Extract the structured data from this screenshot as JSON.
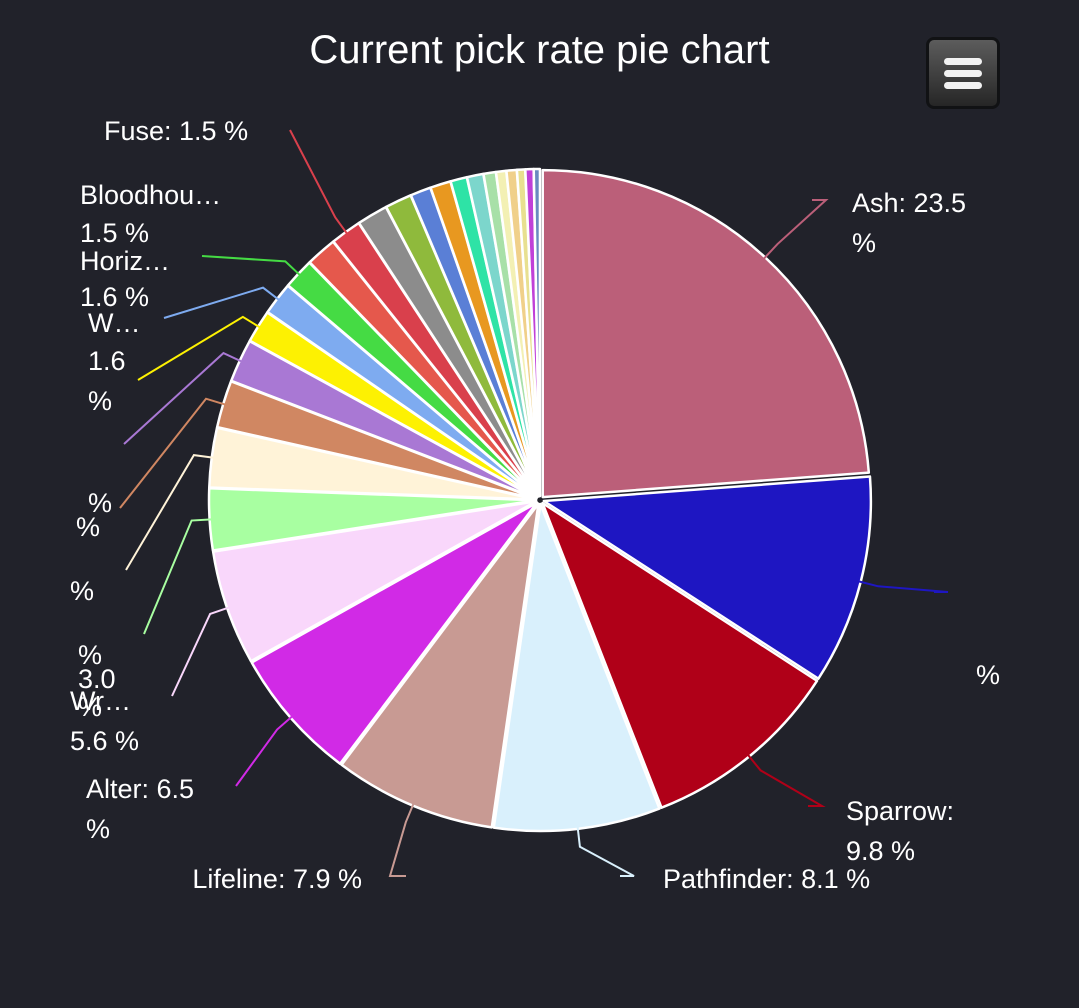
{
  "chart_data": {
    "type": "pie",
    "title": "Current pick rate pie chart",
    "legend": "none",
    "slices": [
      {
        "label": "Ash: 23.5 %",
        "value": 23.5,
        "color": "#bb5f79"
      },
      {
        "label": "",
        "value": 10.2,
        "color": "#1e16c2"
      },
      {
        "label": "Sparrow: 9.8 %",
        "value": 9.8,
        "color": "#b00018"
      },
      {
        "label": "Pathfinder: 8.1 %",
        "value": 8.1,
        "color": "#d9f0fc"
      },
      {
        "label": "Lifeline: 7.9 %",
        "value": 7.9,
        "color": "#c89a93"
      },
      {
        "label": "Alter: 6.5 %",
        "value": 6.5,
        "color": "#d12ae6"
      },
      {
        "label": "Wr… 5.6 %",
        "value": 5.6,
        "color": "#f9d7fb"
      },
      {
        "label": "3.0 %",
        "value": 3.0,
        "color": "#a8ffa1"
      },
      {
        "label": "%",
        "value": 2.9,
        "color": "#fff3d8"
      },
      {
        "label": "%",
        "value": 2.3,
        "color": "#d08762"
      },
      {
        "label": "%",
        "value": 2.1,
        "color": "#a978d4"
      },
      {
        "label": "W… 1.6 %",
        "value": 1.6,
        "color": "#fdf102"
      },
      {
        "label": "Horiz… 1.6 %",
        "value": 1.6,
        "color": "#7eabf0"
      },
      {
        "label": "Bloodhou… 1.5 %",
        "value": 1.5,
        "color": "#45db44"
      },
      {
        "label": "",
        "value": 1.5,
        "color": "#e5584c"
      },
      {
        "label": "Fuse: 1.5 %",
        "value": 1.5,
        "color": "#d9404c"
      },
      {
        "label": "",
        "value": 1.5,
        "color": "#8c8c8c"
      },
      {
        "label": "",
        "value": 1.3,
        "color": "#8fba3c"
      },
      {
        "label": "",
        "value": 1.0,
        "color": "#5a7fd6"
      },
      {
        "label": "",
        "value": 1.0,
        "color": "#e89820"
      },
      {
        "label": "",
        "value": 0.8,
        "color": "#2ee3a6"
      },
      {
        "label": "",
        "value": 0.8,
        "color": "#7cd6cc"
      },
      {
        "label": "",
        "value": 0.6,
        "color": "#a8e0a8"
      },
      {
        "label": "",
        "value": 0.5,
        "color": "#f3f0b4"
      },
      {
        "label": "",
        "value": 0.5,
        "color": "#f0d08a"
      },
      {
        "label": "",
        "value": 0.4,
        "color": "#e8e090"
      },
      {
        "label": "",
        "value": 0.4,
        "color": "#c040d8"
      },
      {
        "label": "",
        "value": 0.3,
        "color": "#6a8ac0"
      }
    ]
  },
  "labels": [
    {
      "slice": 0,
      "lines": [
        "Ash: 23.5",
        "%"
      ]
    },
    {
      "slice": 1,
      "lines": [
        "%"
      ]
    },
    {
      "slice": 2,
      "lines": [
        "Sparrow:",
        "9.8 %"
      ]
    },
    {
      "slice": 3,
      "lines": [
        "Pathfinder: 8.1 %"
      ]
    },
    {
      "slice": 4,
      "lines": [
        "Lifeline: 7.9 %"
      ]
    },
    {
      "slice": 5,
      "lines": [
        "Alter: 6.5",
        "%"
      ]
    },
    {
      "slice": 6,
      "lines": [
        "Wr…",
        "5.6 %"
      ]
    },
    {
      "slice": 7,
      "lines": [
        "%",
        "3.0",
        "%"
      ]
    },
    {
      "slice": 8,
      "lines": [
        "%"
      ]
    },
    {
      "slice": 9,
      "lines": [
        "%"
      ]
    },
    {
      "slice": 10,
      "lines": [
        "%"
      ]
    },
    {
      "slice": 11,
      "lines": [
        "W…",
        "1.6",
        "%"
      ]
    },
    {
      "slice": 12,
      "lines": [
        "Horiz…",
        "1.6 %"
      ]
    },
    {
      "slice": 13,
      "lines": [
        "Bloodhou…",
        "1.5 %"
      ]
    },
    {
      "slice": 15,
      "lines": [
        "Fuse: 1.5 %"
      ]
    }
  ],
  "menu": {
    "icon": "hamburger-menu-icon"
  }
}
